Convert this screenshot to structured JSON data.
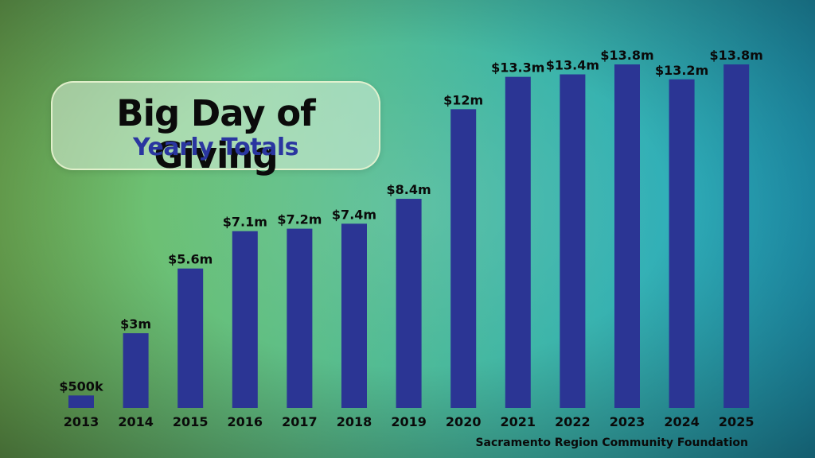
{
  "title": {
    "main": "Big Day of Giving",
    "sub": "Yearly Totals"
  },
  "source": "Sacramento Region Community Foundation",
  "colors": {
    "bar": "#2b3594",
    "subtitle": "#2a36a0"
  },
  "chart_data": {
    "type": "bar",
    "title": "Big Day of Giving",
    "subtitle": "Yearly Totals",
    "xlabel": "",
    "ylabel": "",
    "units": "millions USD",
    "categories": [
      "2013",
      "2014",
      "2015",
      "2016",
      "2017",
      "2018",
      "2019",
      "2020",
      "2021",
      "2022",
      "2023",
      "2024",
      "2025"
    ],
    "values": [
      0.5,
      3,
      5.6,
      7.1,
      7.2,
      7.4,
      8.4,
      12,
      13.3,
      13.4,
      13.8,
      13.2,
      13.8
    ],
    "data_labels": [
      "$500k",
      "$3m",
      "$5.6m",
      "$7.1m",
      "$7.2m",
      "$7.4m",
      "$8.4m",
      "$12m",
      "$13.3m",
      "$13.4m",
      "$13.8m",
      "$13.2m",
      "$13.8m"
    ],
    "ylim": [
      0,
      15
    ],
    "grid": false,
    "legend": "none"
  }
}
